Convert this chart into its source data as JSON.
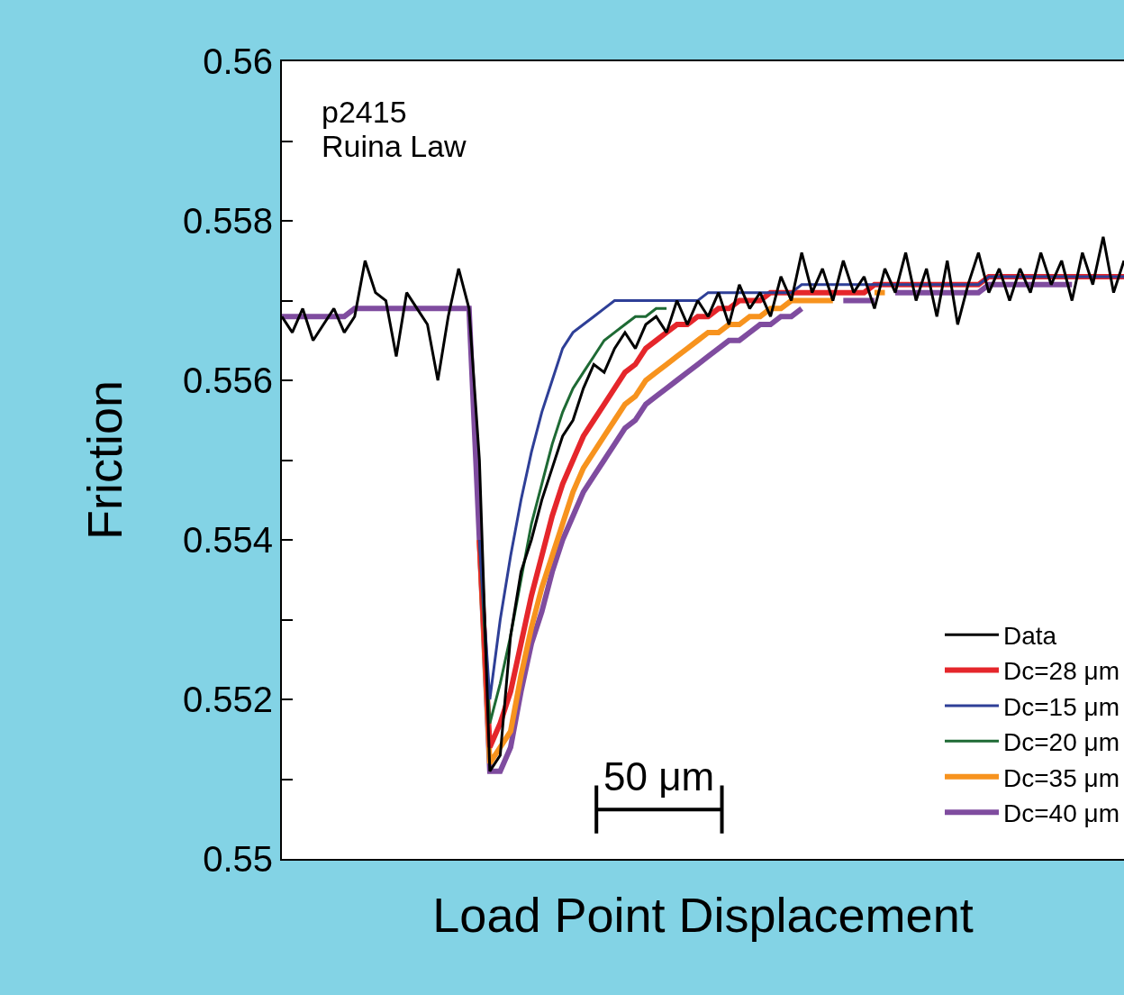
{
  "chart_data": {
    "type": "line",
    "xlabel": "Load Point Displacement",
    "ylabel": "Friction",
    "annotations": [
      "p2415",
      "Ruina Law",
      "50 μm"
    ],
    "categories": [
      null,
      null,
      null,
      null,
      null,
      null,
      null,
      null,
      null,
      null,
      null,
      null,
      null,
      null,
      null,
      null,
      null,
      null,
      null,
      null,
      null,
      null,
      null,
      null,
      null,
      null,
      null,
      null,
      null,
      null,
      null,
      null,
      null,
      null,
      null,
      null,
      null,
      null,
      null,
      null,
      null,
      null,
      null,
      null,
      null,
      null,
      null,
      null,
      null,
      null,
      null,
      null,
      null,
      null,
      null,
      null,
      null,
      null,
      null,
      null,
      null,
      null,
      null,
      null,
      null,
      null,
      null,
      null,
      null,
      null,
      null,
      null,
      null,
      null,
      null,
      null,
      null,
      null,
      null,
      null,
      null,
      null
    ],
    "ylim": [
      0.55,
      0.56
    ],
    "yticks": [
      0.55,
      {
        "value": 0.551,
        "label": null
      },
      0.552,
      {
        "value": 0.553,
        "label": null
      },
      0.554,
      {
        "value": 0.555,
        "label": null
      },
      0.556,
      {
        "value": 0.557,
        "label": null
      },
      0.558,
      {
        "value": 0.559,
        "label": null
      },
      0.56
    ],
    "legend": "bottom right",
    "marker": "none",
    "line_style": "solid",
    "series": [
      {
        "name": "Data",
        "color": "#000000",
        "values": [
          0.5568,
          0.5566,
          0.5569,
          0.5565,
          0.5567,
          0.5569,
          0.5566,
          0.5568,
          0.5575,
          0.5571,
          0.557,
          0.5563,
          0.5571,
          0.5569,
          0.5567,
          0.556,
          0.5568,
          0.5574,
          0.5569,
          0.555,
          0.5511,
          0.5513,
          0.5528,
          0.5536,
          0.554,
          0.5545,
          0.5549,
          0.5553,
          0.5555,
          0.5559,
          0.5562,
          0.5561,
          0.5564,
          0.5566,
          0.5564,
          0.5567,
          0.5568,
          0.5566,
          0.557,
          0.5567,
          0.557,
          0.5568,
          0.5571,
          0.5567,
          0.5572,
          0.5569,
          0.5571,
          0.5568,
          0.5573,
          0.557,
          0.5576,
          0.5571,
          0.5574,
          0.557,
          0.5575,
          0.5571,
          0.5573,
          0.5569,
          0.5574,
          0.5571,
          0.5576,
          0.557,
          0.5574,
          0.5568,
          0.5575,
          0.5567,
          0.5572,
          0.5576,
          0.5571,
          0.5574,
          0.557,
          0.5574,
          0.5571,
          0.5576,
          0.5572,
          0.5575,
          0.557,
          0.5576,
          0.5572,
          0.5578,
          0.5571,
          0.5575
        ]
      },
      {
        "name": "Dc=28 μm",
        "color": "#e5262b",
        "values": [
          null,
          null,
          null,
          null,
          null,
          null,
          null,
          null,
          null,
          null,
          null,
          null,
          null,
          null,
          null,
          null,
          null,
          null,
          null,
          0.554,
          0.5514,
          0.5517,
          0.5521,
          0.5527,
          0.5533,
          0.5538,
          0.5543,
          0.5547,
          0.555,
          0.5553,
          0.5555,
          0.5557,
          0.5559,
          0.5561,
          0.5562,
          0.5564,
          0.5565,
          0.5566,
          0.5567,
          0.5567,
          0.5568,
          0.5568,
          0.5569,
          0.5569,
          0.557,
          0.557,
          0.557,
          0.5571,
          0.5571,
          0.5571,
          0.5571,
          0.5571,
          0.5571,
          0.5571,
          0.5571,
          0.5571,
          0.5571,
          0.5572,
          0.5572,
          0.5572,
          0.5572,
          0.5572,
          0.5572,
          0.5572,
          0.5572,
          0.5572,
          0.5572,
          0.5572,
          0.5573,
          0.5573,
          0.5573,
          0.5573,
          0.5573,
          0.5573,
          0.5573,
          0.5573,
          0.5573,
          0.5573,
          0.5573,
          0.5573,
          0.5573,
          0.5573
        ]
      },
      {
        "name": "Dc=15 μm",
        "color": "#2e3f97",
        "values": [
          null,
          null,
          null,
          null,
          null,
          null,
          null,
          null,
          null,
          null,
          null,
          null,
          null,
          null,
          null,
          null,
          null,
          null,
          null,
          0.554,
          0.552,
          0.553,
          0.5538,
          0.5545,
          0.5551,
          0.5556,
          0.556,
          0.5564,
          0.5566,
          0.5567,
          0.5568,
          0.5569,
          0.557,
          0.557,
          0.557,
          0.557,
          0.557,
          0.557,
          0.557,
          0.557,
          0.557,
          0.5571,
          0.5571,
          0.5571,
          0.5571,
          0.5571,
          0.5571,
          0.5571,
          0.5571,
          0.5571,
          0.5572,
          0.5572,
          0.5572,
          0.5572,
          0.5572,
          0.5572,
          0.5572,
          0.5572,
          0.5572,
          0.5572,
          0.5572,
          0.5572,
          0.5572,
          0.5572,
          0.5572,
          0.5572,
          0.5572,
          0.5572,
          0.5573,
          0.5573,
          0.5573,
          0.5573,
          0.5573,
          0.5573,
          0.5573,
          0.5573,
          0.5573,
          0.5573,
          0.5573,
          0.5573,
          0.5573,
          0.5573
        ]
      },
      {
        "name": "Dc=20 μm",
        "color": "#1e6a34",
        "values": [
          null,
          null,
          null,
          null,
          null,
          null,
          null,
          null,
          null,
          null,
          null,
          null,
          null,
          null,
          null,
          null,
          null,
          null,
          null,
          0.554,
          0.5517,
          0.5522,
          0.5528,
          0.5535,
          0.5542,
          0.5547,
          0.5552,
          0.5556,
          0.5559,
          0.5561,
          0.5563,
          0.5565,
          0.5566,
          0.5567,
          0.5568,
          0.5568,
          0.5569,
          0.5569,
          null,
          null,
          null,
          null,
          null,
          null,
          null,
          null,
          null,
          null,
          null,
          null,
          null,
          null,
          null,
          null,
          null,
          null,
          null,
          null,
          null,
          null,
          null,
          null,
          null,
          null,
          null,
          null,
          null,
          null,
          null,
          null,
          null,
          null,
          null,
          null,
          null,
          null,
          null,
          null,
          null,
          null,
          null,
          null
        ]
      },
      {
        "name": "Dc=35 μm",
        "color": "#f7931e",
        "values": [
          null,
          null,
          null,
          null,
          null,
          null,
          null,
          null,
          null,
          null,
          null,
          null,
          null,
          null,
          null,
          null,
          null,
          null,
          null,
          0.554,
          0.5512,
          0.5514,
          0.5516,
          0.5523,
          0.5529,
          0.5534,
          0.5538,
          0.5542,
          0.5546,
          0.5549,
          0.5551,
          0.5553,
          0.5555,
          0.5557,
          0.5558,
          0.556,
          0.5561,
          0.5562,
          0.5563,
          0.5564,
          0.5565,
          0.5566,
          0.5566,
          0.5567,
          0.5567,
          0.5568,
          0.5568,
          0.5569,
          0.5569,
          0.557,
          0.557,
          0.557,
          0.557,
          0.557,
          null,
          null,
          null,
          0.5571,
          0.5571,
          null,
          null,
          null,
          null,
          null,
          null,
          null,
          null,
          null,
          null,
          null,
          null,
          null,
          null,
          null,
          null,
          null,
          null,
          null,
          null,
          null,
          null,
          null
        ]
      },
      {
        "name": "Dc=40 μm",
        "color": "#7f4c9f",
        "values": [
          0.5568,
          0.5568,
          0.5568,
          0.5568,
          0.5568,
          0.5568,
          0.5568,
          0.5569,
          0.5569,
          0.5569,
          0.5569,
          0.5569,
          0.5569,
          0.5569,
          0.5569,
          0.5569,
          0.5569,
          0.5569,
          0.5569,
          0.554,
          0.5511,
          0.5511,
          0.5514,
          0.5521,
          0.5527,
          0.5531,
          0.5536,
          0.554,
          0.5543,
          0.5546,
          0.5548,
          0.555,
          0.5552,
          0.5554,
          0.5555,
          0.5557,
          0.5558,
          0.5559,
          0.556,
          0.5561,
          0.5562,
          0.5563,
          0.5564,
          0.5565,
          0.5565,
          0.5566,
          0.5567,
          0.5567,
          0.5568,
          0.5568,
          0.5569,
          null,
          null,
          null,
          0.557,
          0.557,
          0.557,
          0.557,
          null,
          0.5571,
          0.5571,
          0.5571,
          0.5571,
          0.5571,
          0.5571,
          0.5571,
          0.5571,
          0.5571,
          0.5572,
          0.5572,
          0.5572,
          0.5572,
          0.5572,
          0.5572,
          0.5572,
          0.5572,
          0.5572,
          null,
          null,
          null,
          null,
          null
        ]
      }
    ]
  }
}
